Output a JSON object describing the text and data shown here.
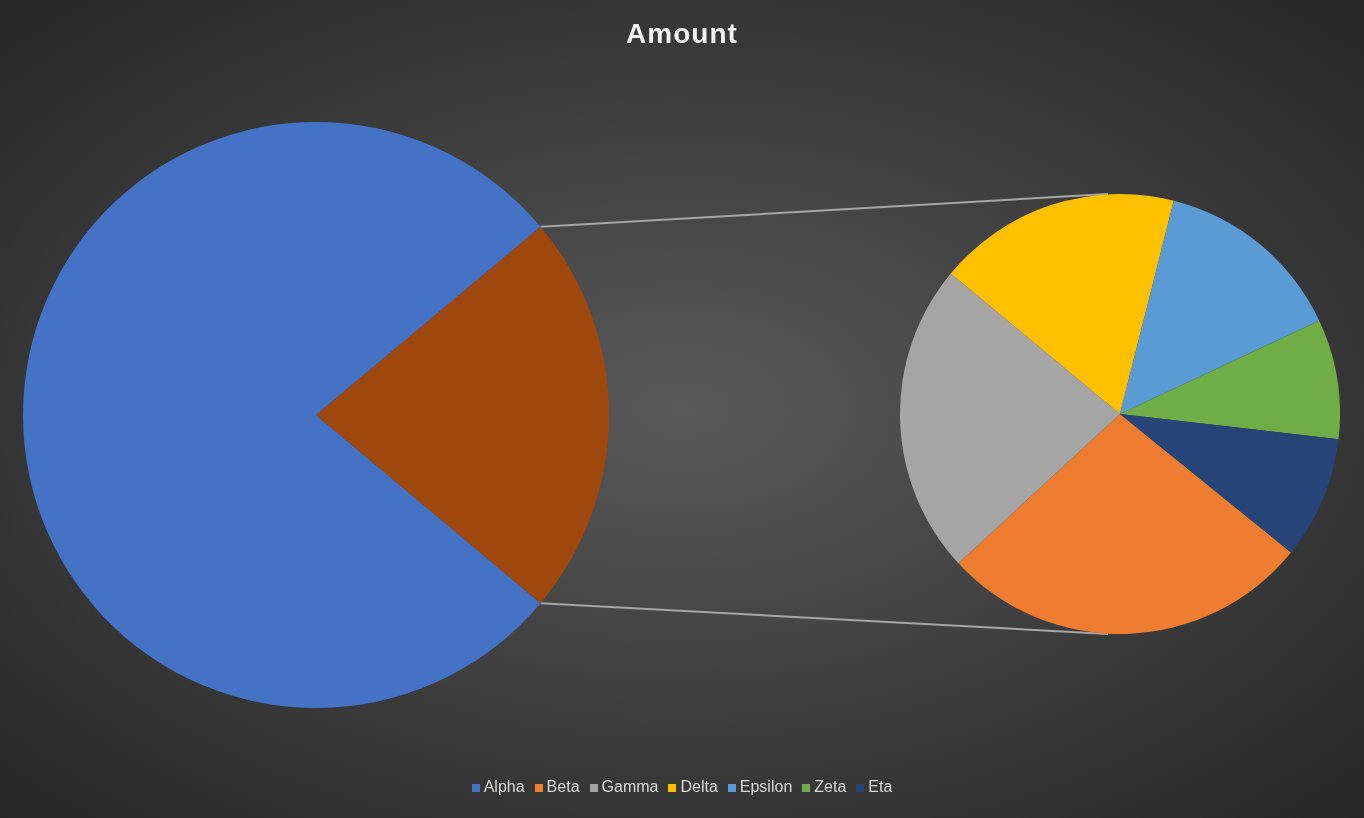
{
  "chart_data": [
    {
      "type": "pie",
      "title": "Amount",
      "categories": [
        "Alpha",
        null
      ],
      "values": [
        77.8,
        22.2
      ],
      "colors": [
        "#4472c4",
        "#9e480e"
      ],
      "legend": "bottom"
    },
    {
      "type": "pie",
      "categories": [
        "Beta",
        "Gamma",
        "Delta",
        "Epsilon",
        "Zeta",
        "Eta"
      ],
      "values": [
        27.3,
        22.9,
        17.9,
        14.1,
        8.8,
        9.0
      ],
      "colors": [
        "#ed7d31",
        "#a5a5a5",
        "#ffc000",
        "#5b9bd5",
        "#70ad47",
        "#264478"
      ],
      "legend": "bottom"
    }
  ]
}
